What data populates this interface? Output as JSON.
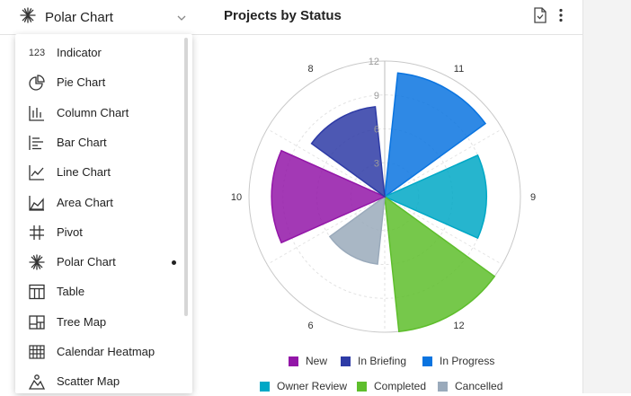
{
  "header": {
    "chart_type_label": "Polar Chart",
    "panel_title": "Projects by Status"
  },
  "menu": {
    "items": [
      {
        "label": "Indicator",
        "icon": "number-123-icon"
      },
      {
        "label": "Pie Chart",
        "icon": "pie-chart-icon"
      },
      {
        "label": "Column Chart",
        "icon": "column-chart-icon"
      },
      {
        "label": "Bar Chart",
        "icon": "bar-chart-icon"
      },
      {
        "label": "Line Chart",
        "icon": "line-chart-icon"
      },
      {
        "label": "Area Chart",
        "icon": "area-chart-icon"
      },
      {
        "label": "Pivot",
        "icon": "pivot-grid-icon"
      },
      {
        "label": "Polar Chart",
        "icon": "polar-chart-icon",
        "selected": true
      },
      {
        "label": "Table",
        "icon": "table-icon"
      },
      {
        "label": "Tree Map",
        "icon": "tree-map-icon"
      },
      {
        "label": "Calendar Heatmap",
        "icon": "calendar-heatmap-icon"
      },
      {
        "label": "Scatter Map",
        "icon": "scatter-map-icon"
      }
    ],
    "indicator_icon_text": "123"
  },
  "chart_data": {
    "type": "polar",
    "title": "Projects by Status",
    "radial_axis": {
      "min": 0,
      "max": 12,
      "ticks": [
        3,
        6,
        9,
        12
      ]
    },
    "grid": true,
    "legend_position": "bottom",
    "series": [
      {
        "name": "In Progress",
        "value": 11,
        "color": "#0a74e0"
      },
      {
        "name": "Owner Review",
        "value": 9,
        "color": "#00a8c6"
      },
      {
        "name": "Completed",
        "value": 12,
        "color": "#5ebe2c"
      },
      {
        "name": "Cancelled",
        "value": 6,
        "color": "#9aaabb"
      },
      {
        "name": "New",
        "value": 10,
        "color": "#9316a8"
      },
      {
        "name": "In Briefing",
        "value": 8,
        "color": "#2e3ba6"
      }
    ],
    "legend_order": [
      "New",
      "In Briefing",
      "In Progress",
      "Owner Review",
      "Completed",
      "Cancelled"
    ]
  }
}
